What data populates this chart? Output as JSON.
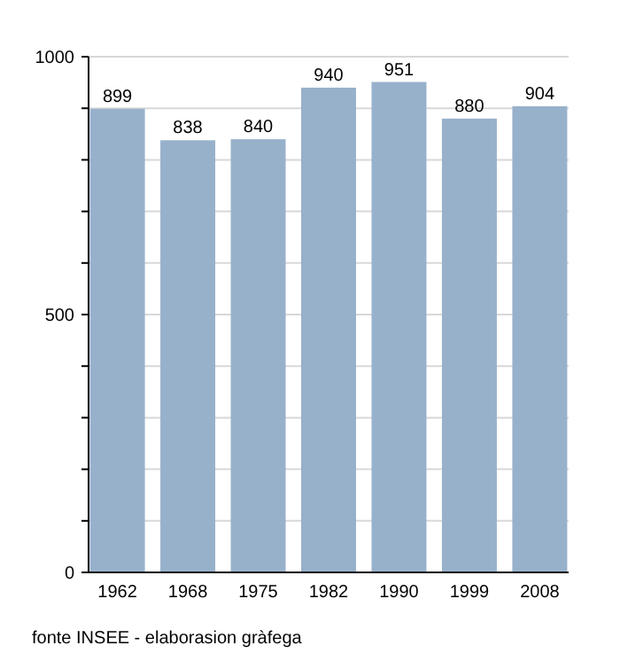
{
  "chart_data": {
    "type": "bar",
    "categories": [
      "1962",
      "1968",
      "1975",
      "1982",
      "1990",
      "1999",
      "2008"
    ],
    "values": [
      899,
      838,
      840,
      940,
      951,
      880,
      904
    ],
    "color": "#98b1cb",
    "data_labels": true,
    "ylim": [
      0,
      1000
    ],
    "yticks": [
      0,
      {
        "value": 100,
        "label": null
      },
      {
        "value": 200,
        "label": null
      },
      {
        "value": 300,
        "label": null
      },
      {
        "value": 400,
        "label": null
      },
      500,
      {
        "value": 600,
        "label": null
      },
      {
        "value": 700,
        "label": null
      },
      {
        "value": 800,
        "label": null
      },
      {
        "value": 900,
        "label": null
      },
      1000
    ],
    "grid": true,
    "annotations": [
      "fonte INSEE - elaborasion gràfega"
    ]
  }
}
